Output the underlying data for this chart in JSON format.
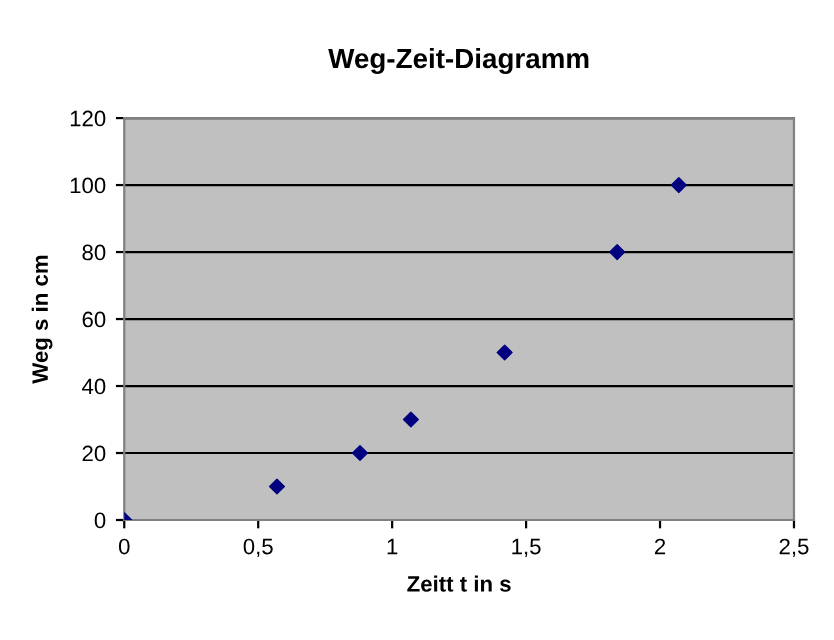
{
  "chart_data": {
    "type": "scatter",
    "title": "Weg-Zeit-Diagramm",
    "xlabel": "Zeitt t in s",
    "ylabel": "Weg s in cm",
    "x": [
      0,
      0.57,
      0.88,
      1.07,
      1.42,
      1.84,
      2.07
    ],
    "series": [
      {
        "color": "#000080",
        "values": [
          0,
          10,
          20,
          30,
          50,
          80,
          100
        ]
      }
    ],
    "xlim": [
      0,
      2.5
    ],
    "xticks": [
      0,
      {
        "value": 0.5,
        "label": "0,5"
      },
      1,
      {
        "value": 1.5,
        "label": "1,5"
      },
      2,
      {
        "value": 2.5,
        "label": "2,5"
      }
    ],
    "ylim": [
      0,
      120
    ],
    "yticks": [
      0,
      20,
      40,
      60,
      80,
      100,
      120
    ],
    "grid": "y",
    "marker": "diamond",
    "legend": false
  }
}
